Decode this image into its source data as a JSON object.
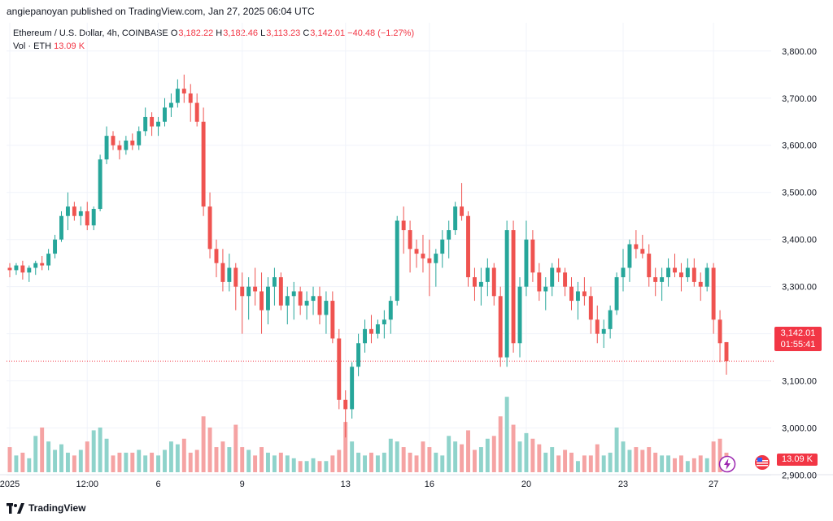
{
  "header": {
    "publisher": "angiepanoyan published on TradingView.com, Jan 27, 2025 06:04 UTC"
  },
  "legend": {
    "symbol": "Ethereum / U.S. Dollar, 4h, COINBASE",
    "open_key": "O",
    "open": "3,182.22",
    "high_key": "H",
    "high": "3,182.46",
    "low_key": "L",
    "low": "3,113.23",
    "close_key": "C",
    "close": "3,142.01",
    "change": "−40.48 (−1.27%)",
    "vol_label": "Vol · ETH",
    "vol_value": "13.09 K"
  },
  "price_tag": {
    "price": "3,142.01",
    "countdown": "01:55:41"
  },
  "volume_tag": "13.09 K",
  "footer": {
    "brand": "TradingView"
  },
  "colors": {
    "up": "#26a69a",
    "down": "#ef5350",
    "up_volume": "#8fd3cb",
    "down_volume": "#f5a3a3",
    "last_price": "#f23645"
  },
  "icons": [
    "tradingview-logo-icon",
    "flag-icon",
    "lightning-icon"
  ],
  "chart_data": {
    "type": "candlestick",
    "y_axis": {
      "ticks": [
        2900,
        3000,
        3100,
        3200,
        3300,
        3400,
        3500,
        3600,
        3700,
        3800
      ],
      "tick_labels": [
        "2,900.00",
        "3,000.00",
        "3,100.00",
        "3,200.00",
        "3,300.00",
        "3,400.00",
        "3,500.00",
        "3,600.00",
        "3,700.00",
        "3,800.00"
      ],
      "range": [
        2920,
        3860
      ]
    },
    "x_axis": {
      "tick_labels": [
        "2025",
        "12:00",
        "6",
        "9",
        "13",
        "16",
        "20",
        "23",
        "27"
      ],
      "tick_index": [
        0,
        12,
        23,
        36,
        52,
        65,
        80,
        95,
        109
      ]
    },
    "last_price": 3142.01,
    "volume_range": [
      0,
      320
    ],
    "ohlcv": [
      [
        3340,
        3350,
        3320,
        3335,
        90
      ],
      [
        3335,
        3350,
        3325,
        3345,
        60
      ],
      [
        3345,
        3355,
        3315,
        3330,
        70
      ],
      [
        3330,
        3345,
        3310,
        3340,
        50
      ],
      [
        3340,
        3355,
        3325,
        3350,
        130
      ],
      [
        3350,
        3365,
        3335,
        3345,
        160
      ],
      [
        3345,
        3380,
        3335,
        3370,
        110
      ],
      [
        3370,
        3410,
        3360,
        3400,
        80
      ],
      [
        3400,
        3460,
        3395,
        3450,
        100
      ],
      [
        3450,
        3500,
        3420,
        3470,
        70
      ],
      [
        3470,
        3480,
        3440,
        3450,
        60
      ],
      [
        3450,
        3470,
        3430,
        3460,
        80
      ],
      [
        3460,
        3480,
        3420,
        3430,
        110
      ],
      [
        3430,
        3470,
        3420,
        3465,
        150
      ],
      [
        3465,
        3580,
        3460,
        3570,
        160
      ],
      [
        3570,
        3640,
        3560,
        3620,
        120
      ],
      [
        3620,
        3630,
        3590,
        3600,
        60
      ],
      [
        3600,
        3610,
        3570,
        3590,
        70
      ],
      [
        3590,
        3620,
        3580,
        3610,
        70
      ],
      [
        3610,
        3625,
        3590,
        3600,
        70
      ],
      [
        3600,
        3640,
        3590,
        3630,
        80
      ],
      [
        3630,
        3680,
        3620,
        3660,
        60
      ],
      [
        3660,
        3670,
        3620,
        3640,
        70
      ],
      [
        3640,
        3660,
        3620,
        3650,
        60
      ],
      [
        3650,
        3700,
        3640,
        3680,
        80
      ],
      [
        3680,
        3710,
        3660,
        3690,
        110
      ],
      [
        3690,
        3740,
        3680,
        3720,
        100
      ],
      [
        3720,
        3750,
        3690,
        3710,
        120
      ],
      [
        3710,
        3730,
        3650,
        3690,
        70
      ],
      [
        3690,
        3710,
        3640,
        3650,
        80
      ],
      [
        3650,
        3680,
        3450,
        3470,
        200
      ],
      [
        3470,
        3500,
        3360,
        3380,
        160
      ],
      [
        3380,
        3400,
        3320,
        3350,
        90
      ],
      [
        3350,
        3380,
        3290,
        3310,
        110
      ],
      [
        3310,
        3370,
        3290,
        3340,
        90
      ],
      [
        3340,
        3350,
        3250,
        3300,
        170
      ],
      [
        3300,
        3330,
        3200,
        3280,
        90
      ],
      [
        3280,
        3320,
        3230,
        3300,
        80
      ],
      [
        3300,
        3340,
        3260,
        3290,
        60
      ],
      [
        3290,
        3330,
        3200,
        3250,
        90
      ],
      [
        3250,
        3320,
        3220,
        3300,
        70
      ],
      [
        3300,
        3340,
        3260,
        3320,
        60
      ],
      [
        3320,
        3330,
        3250,
        3260,
        70
      ],
      [
        3260,
        3300,
        3220,
        3280,
        60
      ],
      [
        3280,
        3310,
        3230,
        3290,
        50
      ],
      [
        3290,
        3300,
        3240,
        3260,
        40
      ],
      [
        3260,
        3290,
        3230,
        3270,
        40
      ],
      [
        3270,
        3300,
        3240,
        3280,
        50
      ],
      [
        3280,
        3300,
        3220,
        3240,
        40
      ],
      [
        3240,
        3290,
        3200,
        3270,
        40
      ],
      [
        3270,
        3290,
        3180,
        3190,
        60
      ],
      [
        3190,
        3210,
        3040,
        3060,
        80
      ],
      [
        3060,
        3080,
        2980,
        3040,
        180
      ],
      [
        3040,
        3140,
        3020,
        3130,
        110
      ],
      [
        3130,
        3200,
        3110,
        3180,
        70
      ],
      [
        3180,
        3230,
        3160,
        3210,
        60
      ],
      [
        3210,
        3240,
        3180,
        3200,
        70
      ],
      [
        3200,
        3230,
        3190,
        3220,
        60
      ],
      [
        3220,
        3250,
        3190,
        3230,
        70
      ],
      [
        3230,
        3280,
        3200,
        3270,
        120
      ],
      [
        3270,
        3450,
        3260,
        3440,
        110
      ],
      [
        3440,
        3470,
        3370,
        3420,
        90
      ],
      [
        3420,
        3440,
        3330,
        3380,
        70
      ],
      [
        3380,
        3400,
        3340,
        3370,
        60
      ],
      [
        3370,
        3410,
        3330,
        3360,
        110
      ],
      [
        3360,
        3400,
        3280,
        3350,
        90
      ],
      [
        3350,
        3380,
        3300,
        3370,
        70
      ],
      [
        3370,
        3420,
        3340,
        3400,
        60
      ],
      [
        3400,
        3440,
        3360,
        3420,
        130
      ],
      [
        3420,
        3480,
        3410,
        3470,
        110
      ],
      [
        3470,
        3520,
        3440,
        3450,
        100
      ],
      [
        3450,
        3460,
        3300,
        3320,
        150
      ],
      [
        3320,
        3340,
        3270,
        3300,
        80
      ],
      [
        3300,
        3340,
        3260,
        3310,
        90
      ],
      [
        3310,
        3360,
        3280,
        3340,
        120
      ],
      [
        3340,
        3350,
        3260,
        3280,
        130
      ],
      [
        3280,
        3300,
        3130,
        3150,
        200
      ],
      [
        3150,
        3440,
        3130,
        3420,
        270
      ],
      [
        3420,
        3440,
        3160,
        3180,
        170
      ],
      [
        3180,
        3320,
        3150,
        3300,
        110
      ],
      [
        3300,
        3440,
        3280,
        3400,
        140
      ],
      [
        3400,
        3420,
        3310,
        3330,
        120
      ],
      [
        3330,
        3350,
        3270,
        3290,
        100
      ],
      [
        3290,
        3320,
        3250,
        3300,
        70
      ],
      [
        3300,
        3350,
        3280,
        3340,
        90
      ],
      [
        3340,
        3360,
        3310,
        3330,
        60
      ],
      [
        3330,
        3340,
        3280,
        3300,
        80
      ],
      [
        3300,
        3320,
        3250,
        3270,
        70
      ],
      [
        3270,
        3310,
        3230,
        3290,
        40
      ],
      [
        3290,
        3320,
        3260,
        3280,
        60
      ],
      [
        3280,
        3300,
        3200,
        3230,
        60
      ],
      [
        3230,
        3260,
        3180,
        3200,
        100
      ],
      [
        3200,
        3230,
        3170,
        3210,
        60
      ],
      [
        3210,
        3260,
        3190,
        3250,
        70
      ],
      [
        3250,
        3330,
        3240,
        3320,
        160
      ],
      [
        3320,
        3380,
        3290,
        3340,
        110
      ],
      [
        3340,
        3400,
        3310,
        3390,
        80
      ],
      [
        3390,
        3420,
        3360,
        3380,
        90
      ],
      [
        3380,
        3410,
        3360,
        3370,
        80
      ],
      [
        3370,
        3390,
        3300,
        3320,
        90
      ],
      [
        3320,
        3340,
        3280,
        3310,
        70
      ],
      [
        3310,
        3340,
        3270,
        3320,
        60
      ],
      [
        3320,
        3360,
        3300,
        3340,
        60
      ],
      [
        3340,
        3370,
        3320,
        3330,
        50
      ],
      [
        3330,
        3350,
        3290,
        3320,
        60
      ],
      [
        3320,
        3360,
        3310,
        3340,
        40
      ],
      [
        3340,
        3360,
        3300,
        3310,
        50
      ],
      [
        3310,
        3330,
        3270,
        3300,
        60
      ],
      [
        3300,
        3350,
        3290,
        3340,
        50
      ],
      [
        3340,
        3350,
        3200,
        3230,
        110
      ],
      [
        3230,
        3250,
        3140,
        3180,
        120
      ],
      [
        3182.22,
        3182.46,
        3113.23,
        3142.01,
        70
      ]
    ]
  }
}
